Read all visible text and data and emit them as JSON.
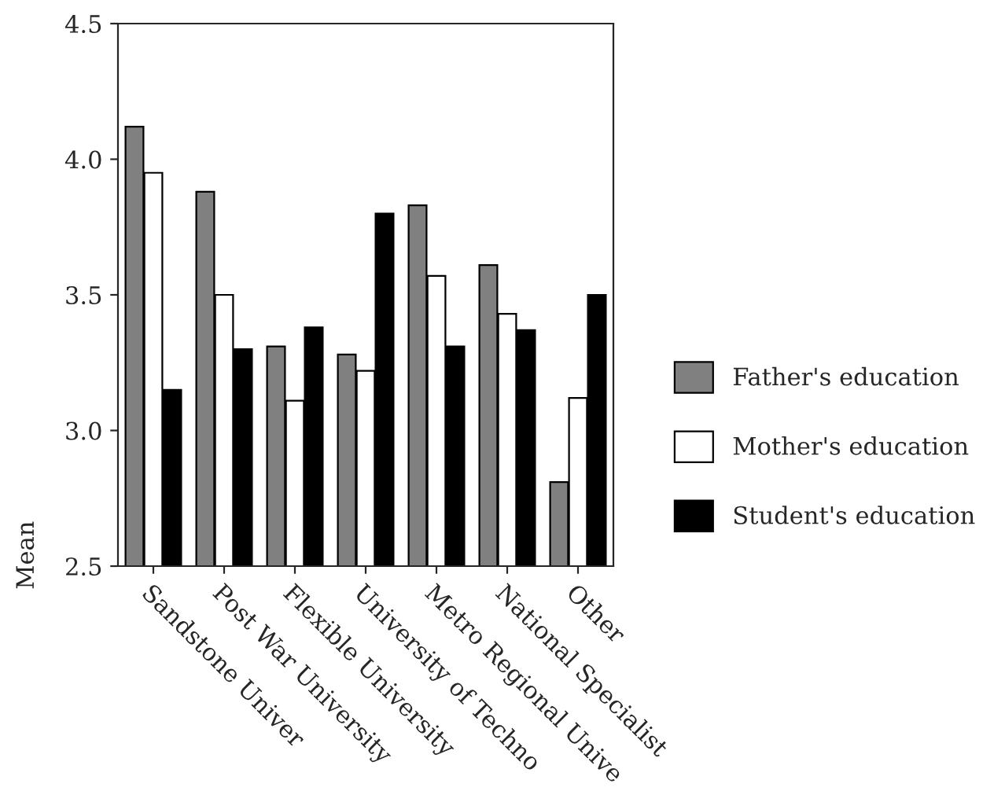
{
  "chart_data": {
    "type": "bar",
    "ylabel": "Mean",
    "categories": [
      "Sandstone Univer",
      "Post War University",
      "Flexible University",
      "University of Techno",
      "Metro Regional Unive",
      "National Specialist",
      "Other"
    ],
    "series": [
      {
        "name": "Father's education",
        "color": "#808080",
        "values": [
          4.12,
          3.88,
          3.31,
          3.28,
          3.83,
          3.61,
          2.81
        ]
      },
      {
        "name": "Mother's education",
        "color": "#ffffff",
        "values": [
          3.95,
          3.5,
          3.11,
          3.22,
          3.57,
          3.43,
          3.12
        ]
      },
      {
        "name": "Student's education",
        "color": "#000000",
        "values": [
          3.15,
          3.3,
          3.38,
          3.8,
          3.31,
          3.37,
          3.5
        ]
      }
    ],
    "ylim": [
      2.5,
      4.5
    ],
    "yticks": [
      {
        "value": 2.5,
        "label": "2.5"
      },
      {
        "value": 3.0,
        "label": "3.0"
      },
      {
        "value": 3.5,
        "label": "3.5"
      },
      {
        "value": 4.0,
        "label": "4.0"
      },
      {
        "value": 4.5,
        "label": "4.5"
      }
    ],
    "legend": "right",
    "grid": false
  }
}
